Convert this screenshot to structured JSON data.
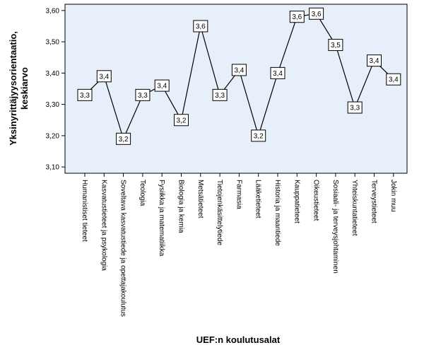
{
  "chart_data": {
    "type": "line",
    "xlabel": "UEF:n koulutusalat",
    "ylabel_line1": "Yksinyrittäjyysorientaatio,",
    "ylabel_line2": "keskiarvo",
    "ylim": [
      3.08,
      3.62
    ],
    "yticks": [
      "3,10",
      "3,20",
      "3,30",
      "3,40",
      "3,50",
      "3,60"
    ],
    "ytick_values": [
      3.1,
      3.2,
      3.3,
      3.4,
      3.5,
      3.6
    ],
    "grid": false,
    "colors": {
      "plot_background": "#e6effa",
      "line": "#000000"
    },
    "categories": [
      "Humanistiset tieteet",
      "Kasvatustieteet ja psykologia",
      "Soveltava kasvatustiede ja opettajakoulutus",
      "Teologia",
      "Fysiikka ja matematiikka",
      "Biologia ja kemia",
      "Metsätieteet",
      "Tietojenkäsittelytiede",
      "Farmasia",
      "Lääketieteet",
      "Historia ja maantiede",
      "Kauppatieteet",
      "Oikeustieteet",
      "Sosiaali- ja terveysjohtaminen",
      "Yhteiskuntatieteet",
      "Terveystieteet",
      "Jokin muu"
    ],
    "values": [
      3.33,
      3.39,
      3.19,
      3.33,
      3.36,
      3.25,
      3.55,
      3.33,
      3.41,
      3.2,
      3.4,
      3.58,
      3.59,
      3.49,
      3.29,
      3.44,
      3.38
    ],
    "data_labels": [
      "3,3",
      "3,4",
      "3,2",
      "3,3",
      "3,4",
      "3,2",
      "3,6",
      "3,3",
      "3,4",
      "3,2",
      "3,4",
      "3,6",
      "3,6",
      "3,5",
      "3,3",
      "3,4",
      "3,4"
    ]
  }
}
